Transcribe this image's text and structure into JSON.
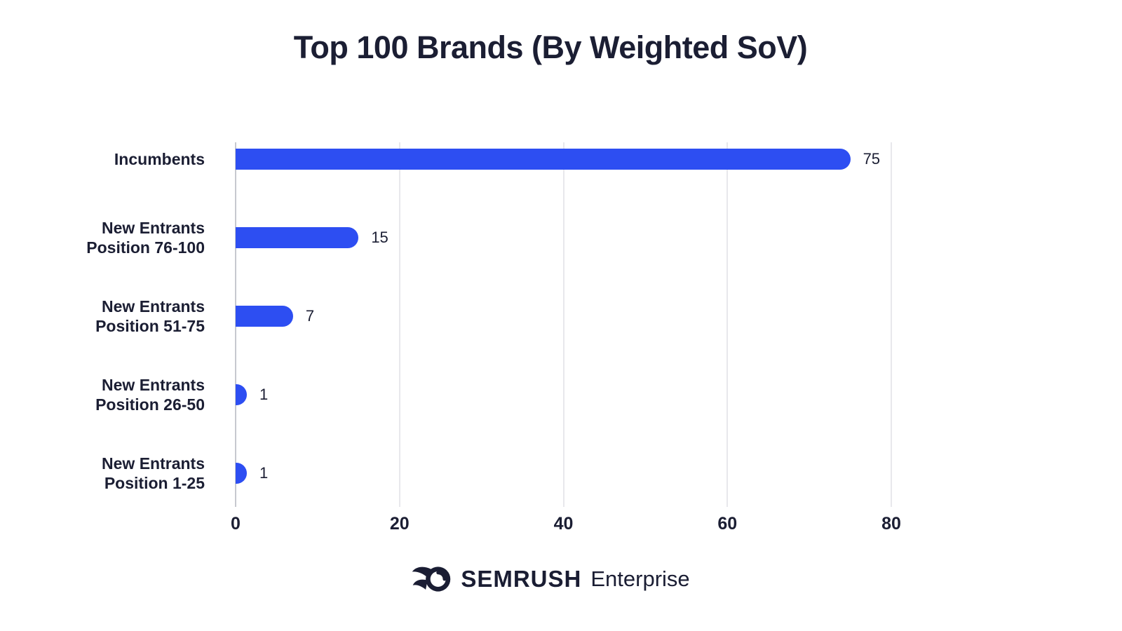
{
  "title": "Top 100 Brands (By Weighted SoV)",
  "chart_data": {
    "type": "bar",
    "orientation": "horizontal",
    "title": "Top 100 Brands (By Weighted SoV)",
    "categories": [
      "Incumbents",
      "New Entrants Position 76-100",
      "New Entrants Position 51-75",
      "New Entrants Position 26-50",
      "New Entrants Position 1-25"
    ],
    "category_label_lines": [
      [
        "Incumbents"
      ],
      [
        "New Entrants",
        "Position 76-100"
      ],
      [
        "New Entrants",
        "Position 51-75"
      ],
      [
        "New Entrants",
        "Position 26-50"
      ],
      [
        "New Entrants",
        "Position 1-25"
      ]
    ],
    "values": [
      75,
      15,
      7,
      1,
      1
    ],
    "value_labels": [
      "75",
      "15",
      "7",
      "1",
      "1"
    ],
    "xlim": [
      0,
      80
    ],
    "xticks": [
      0,
      20,
      40,
      60,
      80
    ],
    "grid": true,
    "legend": false,
    "bar_color": "#2d4ef2",
    "text_color": "#1b1e33",
    "grid_color": "#e8e8ec",
    "axis_line_color": "#c7c9cf"
  },
  "footer": {
    "brand": "SEMRUSH",
    "suffix": "Enterprise",
    "logo_icon": "semrush-comet-icon",
    "color": "#1a1d33"
  }
}
